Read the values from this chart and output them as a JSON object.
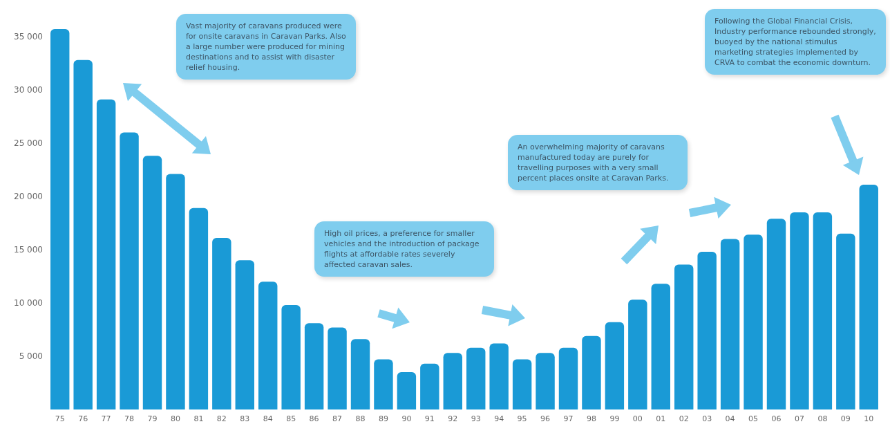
{
  "chart_data": {
    "type": "bar",
    "categories": [
      "75",
      "76",
      "77",
      "78",
      "79",
      "80",
      "81",
      "82",
      "83",
      "84",
      "85",
      "86",
      "87",
      "88",
      "89",
      "90",
      "91",
      "92",
      "93",
      "94",
      "95",
      "96",
      "97",
      "98",
      "99",
      "00",
      "01",
      "02",
      "03",
      "04",
      "05",
      "06",
      "07",
      "08",
      "09",
      "10"
    ],
    "values": [
      35700,
      32800,
      29100,
      26000,
      23800,
      22100,
      18900,
      16100,
      14000,
      12000,
      9800,
      8100,
      7700,
      6600,
      4700,
      3500,
      4300,
      5300,
      5800,
      6200,
      4700,
      5300,
      5800,
      6900,
      8200,
      10300,
      11800,
      13600,
      14800,
      16000,
      16400,
      17900,
      18500,
      18500,
      16500,
      21100
    ],
    "color": "#1a9ad6",
    "ylim": [
      0,
      37000
    ],
    "yticks": [
      {
        "value": 5000,
        "label": "5 000"
      },
      {
        "value": 10000,
        "label": "10 000"
      },
      {
        "value": 15000,
        "label": "15 000"
      },
      {
        "value": 20000,
        "label": "20 000"
      },
      {
        "value": 25000,
        "label": "25 000"
      },
      {
        "value": 30000,
        "label": "30 000"
      },
      {
        "value": 35000,
        "label": "35 000"
      }
    ],
    "grid": false,
    "annotations": [
      "Vast majority of caravans produced were for onsite caravans in Caravan Parks.  Also a large number were produced for mining destinations and to assist with disaster relief housing.",
      "High oil prices, a preference for smaller vehicles and the introduction of package flights at affordable rates severely affected caravan sales.",
      "An overwhelming majority of caravans manufactured today are purely for travelling purposes with a very small percent places onsite at Caravan Parks.",
      "Following the Global Financial Crisis, Industry performance rebounded strongly, buoyed by the national stimulus marketing strategies implemented by CRVA to combat the economic downturn."
    ]
  }
}
